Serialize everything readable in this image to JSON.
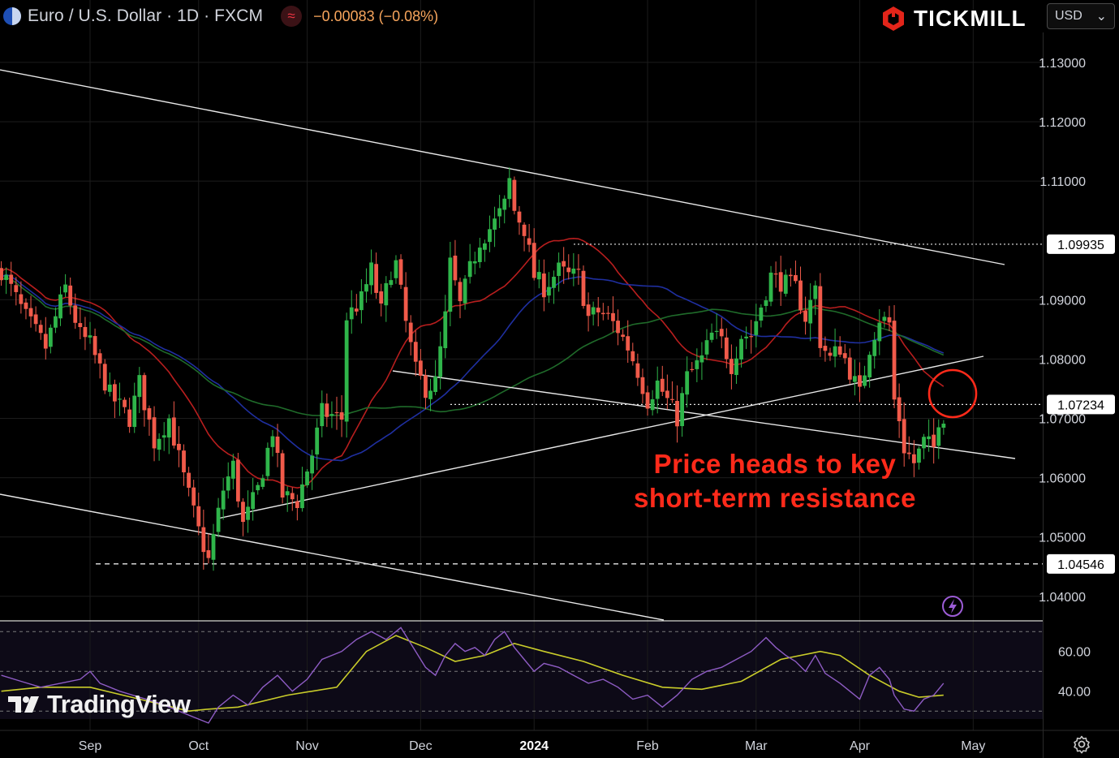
{
  "header": {
    "symbol": "Euro / U.S. Dollar · 1D · FXCM",
    "change": "−0.00083 (−0.08%)",
    "indicator_glyph": "≈"
  },
  "brand": {
    "name": "TICKMILL"
  },
  "currency": {
    "label": "USD",
    "caret": "⌄"
  },
  "watermark": {
    "text": "TradingView"
  },
  "annotation": {
    "line1": "Price heads to key",
    "line2": "short-term resistance"
  },
  "icons": {
    "symbol": "flag-eu-us-icon",
    "indicator": "waves-icon",
    "brand": "tickmill-hexagon-icon",
    "bolt": "lightning-bolt-icon",
    "settings": "gear-icon"
  },
  "colors": {
    "up": "#2fb54a",
    "down": "#f05a4a",
    "background": "#000000",
    "grid": "#1c1c1c",
    "trendline": "#e8e8e8",
    "ma_red": "#b81e1e",
    "ma_blue": "#1f2fa0",
    "ma_green": "#1f6b2a",
    "rsi": "#8e5cc4",
    "rsi_ma": "#c9cc2a",
    "annotation": "#ff2a1a"
  },
  "chart_data": [
    {
      "type": "candlestick",
      "title": "Euro / U.S. Dollar · 1D · FXCM",
      "y_axis_side": "right",
      "ylim": [
        1.036,
        1.1345
      ],
      "yticks": [
        "1.13000",
        "1.12000",
        "1.11000",
        "1.09000",
        "1.08000",
        "1.07000",
        "1.06000",
        "1.05000",
        "1.04000"
      ],
      "price_labels": [
        "1.09935",
        "1.07234",
        "1.04546"
      ],
      "xticks": [
        {
          "label": "Sep",
          "bar": 0
        },
        {
          "label": "Oct",
          "bar": 22
        },
        {
          "label": "Nov",
          "bar": 44
        },
        {
          "label": "Dec",
          "bar": 67
        },
        {
          "label": "2024",
          "bar": 90
        },
        {
          "label": "Feb",
          "bar": 113
        },
        {
          "label": "Mar",
          "bar": 135
        },
        {
          "label": "Apr",
          "bar": 156
        },
        {
          "label": "May",
          "bar": 179
        }
      ],
      "bar_range": [
        -18,
        193
      ],
      "close_anchors": [
        [
          -18,
          1.095
        ],
        [
          -13,
          1.087
        ],
        [
          -9,
          1.082
        ],
        [
          -5,
          1.092
        ],
        [
          -2,
          1.084
        ],
        [
          0,
          1.0825
        ],
        [
          4,
          1.074
        ],
        [
          8,
          1.07
        ],
        [
          10,
          1.076
        ],
        [
          13,
          1.066
        ],
        [
          16,
          1.07
        ],
        [
          19,
          1.06
        ],
        [
          22,
          1.051
        ],
        [
          24,
          1.046
        ],
        [
          27,
          1.058
        ],
        [
          29,
          1.062
        ],
        [
          31,
          1.052
        ],
        [
          34,
          1.058
        ],
        [
          37,
          1.068
        ],
        [
          39,
          1.057
        ],
        [
          42,
          1.056
        ],
        [
          45,
          1.064
        ],
        [
          47,
          1.071
        ],
        [
          51,
          1.07
        ],
        [
          52,
          1.087
        ],
        [
          55,
          1.09
        ],
        [
          57,
          1.095
        ],
        [
          59,
          1.088
        ],
        [
          61,
          1.095
        ],
        [
          62,
          1.096
        ],
        [
          64,
          1.086
        ],
        [
          66,
          1.078
        ],
        [
          68,
          1.075
        ],
        [
          70,
          1.076
        ],
        [
          72,
          1.087
        ],
        [
          73,
          1.096
        ],
        [
          75,
          1.089
        ],
        [
          77,
          1.095
        ],
        [
          79,
          1.1
        ],
        [
          82,
          1.103
        ],
        [
          84,
          1.106
        ],
        [
          85,
          1.11
        ],
        [
          86,
          1.105
        ],
        [
          88,
          1.102
        ],
        [
          90,
          1.094
        ],
        [
          92,
          1.092
        ],
        [
          95,
          1.095
        ],
        [
          97,
          1.094
        ],
        [
          99,
          1.094
        ],
        [
          101,
          1.087
        ],
        [
          103,
          1.088
        ],
        [
          105,
          1.087
        ],
        [
          107,
          1.085
        ],
        [
          109,
          1.082
        ],
        [
          111,
          1.078
        ],
        [
          113,
          1.073
        ],
        [
          115,
          1.076
        ],
        [
          117,
          1.073
        ],
        [
          119,
          1.07
        ],
        [
          121,
          1.077
        ],
        [
          124,
          1.08
        ],
        [
          126,
          1.084
        ],
        [
          128,
          1.083
        ],
        [
          130,
          1.079
        ],
        [
          132,
          1.084
        ],
        [
          134,
          1.084
        ],
        [
          136,
          1.089
        ],
        [
          138,
          1.094
        ],
        [
          140,
          1.093
        ],
        [
          143,
          1.092
        ],
        [
          145,
          1.087
        ],
        [
          147,
          1.092
        ],
        [
          148,
          1.083
        ],
        [
          150,
          1.08
        ],
        [
          152,
          1.082
        ],
        [
          154,
          1.078
        ],
        [
          156,
          1.074
        ],
        [
          158,
          1.082
        ],
        [
          160,
          1.087
        ],
        [
          162,
          1.086
        ],
        [
          163,
          1.073
        ],
        [
          164,
          1.07
        ],
        [
          165,
          1.065
        ],
        [
          167,
          1.0625
        ],
        [
          169,
          1.066
        ],
        [
          171,
          1.065
        ],
        [
          172,
          1.07
        ],
        [
          173,
          1.0705
        ]
      ]
    },
    {
      "type": "line",
      "title": "RSI",
      "ylim": [
        26,
        75
      ],
      "yticks": [
        "60.00",
        "40.00"
      ],
      "series": [
        {
          "values": [
            [
              -18,
              40
            ],
            [
              -10,
              42
            ],
            [
              0,
              42
            ],
            [
              10,
              36
            ],
            [
              20,
              30
            ],
            [
              24,
              31
            ],
            [
              30,
              32
            ],
            [
              40,
              38
            ],
            [
              50,
              42
            ],
            [
              56,
              60
            ],
            [
              62,
              68
            ],
            [
              68,
              62
            ],
            [
              74,
              55
            ],
            [
              80,
              58
            ],
            [
              86,
              64
            ],
            [
              92,
              60
            ],
            [
              100,
              55
            ],
            [
              108,
              48
            ],
            [
              116,
              42
            ],
            [
              124,
              41
            ],
            [
              132,
              45
            ],
            [
              140,
              56
            ],
            [
              148,
              60
            ],
            [
              152,
              58
            ],
            [
              158,
              48
            ],
            [
              164,
              40
            ],
            [
              168,
              37
            ],
            [
              173,
              38
            ]
          ]
        },
        {
          "values": [
            [
              -18,
              48
            ],
            [
              -14,
              45
            ],
            [
              -10,
              42
            ],
            [
              -6,
              44
            ],
            [
              -2,
              46
            ],
            [
              0,
              50
            ],
            [
              2,
              44
            ],
            [
              6,
              40
            ],
            [
              10,
              37
            ],
            [
              14,
              34
            ],
            [
              18,
              30
            ],
            [
              21,
              27
            ],
            [
              24,
              24
            ],
            [
              26,
              32
            ],
            [
              29,
              38
            ],
            [
              32,
              33
            ],
            [
              35,
              42
            ],
            [
              38,
              48
            ],
            [
              41,
              40
            ],
            [
              44,
              46
            ],
            [
              47,
              56
            ],
            [
              51,
              60
            ],
            [
              54,
              66
            ],
            [
              57,
              70
            ],
            [
              60,
              66
            ],
            [
              63,
              72
            ],
            [
              65,
              64
            ],
            [
              68,
              52
            ],
            [
              70,
              48
            ],
            [
              72,
              58
            ],
            [
              74,
              64
            ],
            [
              76,
              60
            ],
            [
              78,
              62
            ],
            [
              80,
              58
            ],
            [
              82,
              66
            ],
            [
              84,
              70
            ],
            [
              86,
              62
            ],
            [
              88,
              56
            ],
            [
              90,
              50
            ],
            [
              92,
              54
            ],
            [
              95,
              52
            ],
            [
              98,
              48
            ],
            [
              101,
              44
            ],
            [
              104,
              46
            ],
            [
              107,
              42
            ],
            [
              110,
              36
            ],
            [
              113,
              38
            ],
            [
              116,
              32
            ],
            [
              119,
              38
            ],
            [
              122,
              46
            ],
            [
              125,
              50
            ],
            [
              128,
              52
            ],
            [
              131,
              56
            ],
            [
              134,
              60
            ],
            [
              137,
              67
            ],
            [
              139,
              62
            ],
            [
              141,
              58
            ],
            [
              143,
              55
            ],
            [
              145,
              50
            ],
            [
              147,
              58
            ],
            [
              149,
              49
            ],
            [
              152,
              44
            ],
            [
              154,
              40
            ],
            [
              156,
              36
            ],
            [
              158,
              48
            ],
            [
              160,
              52
            ],
            [
              162,
              46
            ],
            [
              163,
              38
            ],
            [
              165,
              31
            ],
            [
              167,
              30
            ],
            [
              169,
              36
            ],
            [
              171,
              38
            ],
            [
              173,
              44
            ]
          ]
        }
      ]
    }
  ]
}
